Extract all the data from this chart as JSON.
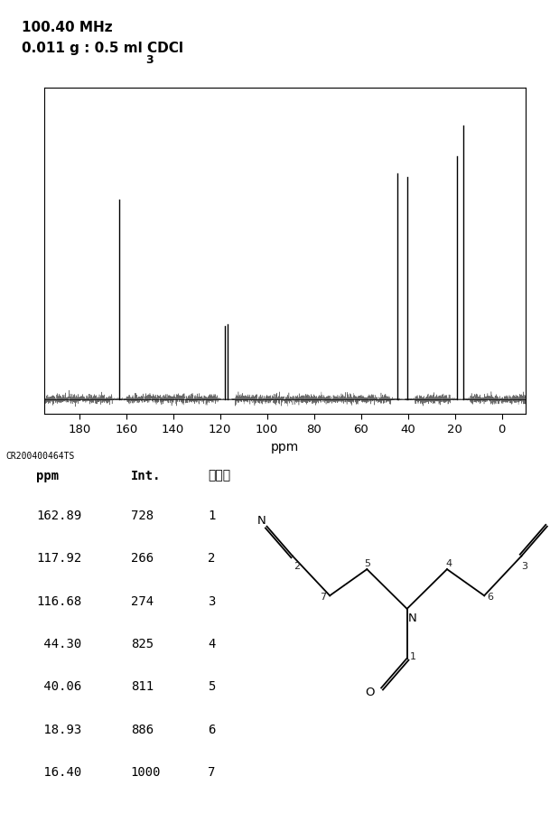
{
  "freq_label": "100.40 MHz",
  "conc_label": "0.011 g : 0.5 ml CDCl",
  "conc_sub": "3",
  "ref_label": "CR200400464TS",
  "xlabel": "ppm",
  "xlim": [
    195,
    -10
  ],
  "xticks": [
    180,
    160,
    140,
    120,
    100,
    80,
    60,
    40,
    20,
    0
  ],
  "peaks": [
    {
      "ppm": 162.89,
      "intensity": 728
    },
    {
      "ppm": 117.92,
      "intensity": 266
    },
    {
      "ppm": 116.68,
      "intensity": 274
    },
    {
      "ppm": 44.3,
      "intensity": 825
    },
    {
      "ppm": 40.06,
      "intensity": 811
    },
    {
      "ppm": 18.93,
      "intensity": 886
    },
    {
      "ppm": 16.4,
      "intensity": 1000
    }
  ],
  "table_data": [
    [
      "162.89",
      "728",
      "1"
    ],
    [
      "117.92",
      "266",
      "2"
    ],
    [
      "116.68",
      "274",
      "3"
    ],
    [
      " 44.30",
      "825",
      "4"
    ],
    [
      " 40.06",
      "811",
      "5"
    ],
    [
      " 18.93",
      "886",
      "6"
    ],
    [
      " 16.40",
      "1000",
      "7"
    ]
  ],
  "table_headers": [
    "ppm",
    "Int.",
    "标记碗"
  ],
  "background_color": "#ffffff",
  "line_color": "#000000"
}
